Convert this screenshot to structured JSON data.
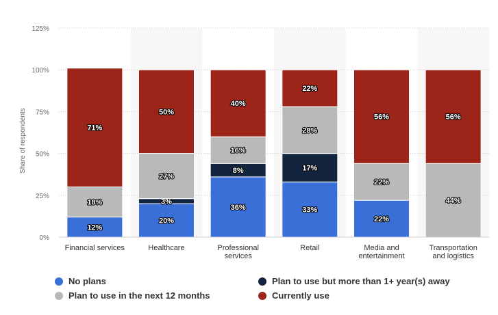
{
  "chart_data": {
    "type": "bar",
    "stacked": true,
    "ylabel": "Share of respondents",
    "ylim": [
      0,
      125
    ],
    "yticks": [
      "0%",
      "25%",
      "50%",
      "75%",
      "100%",
      "125%"
    ],
    "grid": true,
    "categories": [
      "Financial services",
      "Healthcare",
      "Professional services",
      "Retail",
      "Media and entertainment",
      "Transportation and logistics"
    ],
    "series": [
      {
        "name": "No plans",
        "color": "#3a6fd8",
        "values": [
          12,
          20,
          36,
          33,
          22,
          0
        ]
      },
      {
        "name": "Plan to use but more than 1+ year(s) away",
        "color": "#13243f",
        "values": [
          0,
          3,
          8,
          17,
          0,
          0
        ]
      },
      {
        "name": "Plan to use in the next 12 months",
        "color": "#b9b9b9",
        "values": [
          18,
          27,
          16,
          28,
          22,
          44
        ]
      },
      {
        "name": "Currently use",
        "color": "#9c2418",
        "values": [
          71,
          50,
          40,
          22,
          56,
          56
        ]
      }
    ],
    "legend_position": "bottom"
  }
}
